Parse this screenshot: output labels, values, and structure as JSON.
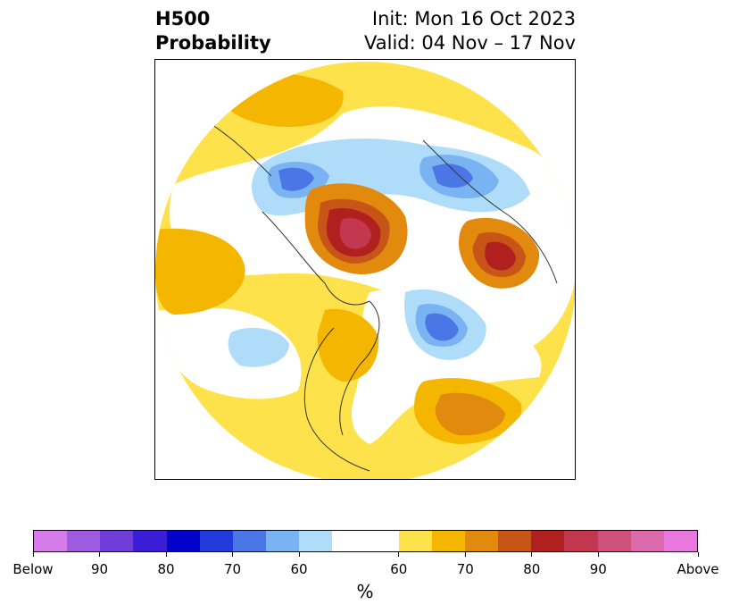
{
  "title": {
    "left_line1": "H500",
    "left_line2": "Probability",
    "right_line1": "Init: Mon 16 Oct 2023",
    "right_line2": "Valid: 04 Nov – 17 Nov"
  },
  "colorbar": {
    "unit": "%",
    "colors": [
      "#d57bea",
      "#9f5bdf",
      "#6f3ed8",
      "#3c1dd6",
      "#0202c9",
      "#2239db",
      "#4b77e6",
      "#79b3f2",
      "#aedcf9",
      "#ffffff",
      "#fde24b",
      "#f5b600",
      "#e28a0e",
      "#c85518",
      "#b0201f",
      "#c3374f",
      "#d0507c",
      "#dd6aad",
      "#e878de"
    ],
    "tick_labels": [
      "Below",
      "90",
      "80",
      "70",
      "60",
      "60",
      "70",
      "80",
      "90",
      "Above"
    ]
  },
  "map": {
    "projection": "north-polar-stereographic",
    "field": "500 hPa height anomaly probability",
    "features": [
      "coastlines",
      "country-borders",
      "us-state-borders"
    ]
  }
}
